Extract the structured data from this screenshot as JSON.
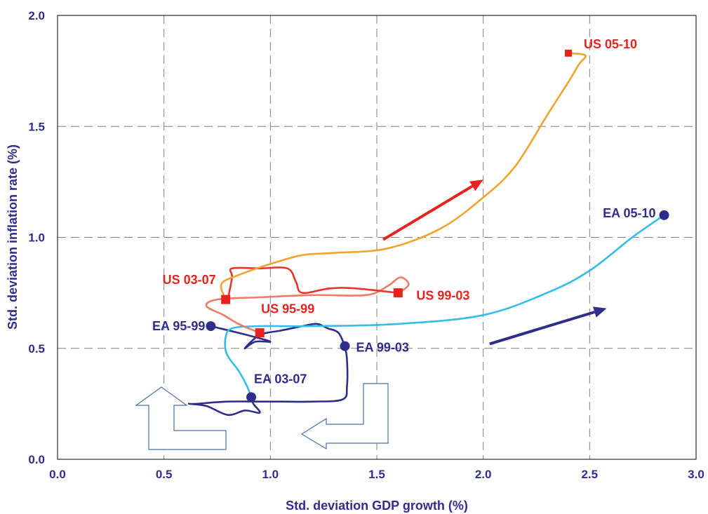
{
  "chart_data": {
    "type": "line",
    "xlabel": "Std. deviation GDP growth (%)",
    "ylabel": "Std. deviation inflation rate (%)",
    "xlim": [
      0.0,
      3.0
    ],
    "ylim": [
      0.0,
      2.0
    ],
    "x_ticks": [
      "0.0",
      "0.5",
      "1.0",
      "1.5",
      "2.0",
      "2.5",
      "3.0"
    ],
    "y_ticks": [
      "0.0",
      "0.5",
      "1.0",
      "1.5",
      "2.0"
    ],
    "grid": true,
    "colors": {
      "ea_path": "#2e2d8c",
      "ea_05_10_path": "#33bde8",
      "us_path": "#e8342a",
      "us_95_99_path": "#f07a6a",
      "us_05_10_path": "#f2a22f",
      "ea_marker": "#2e2d8c",
      "us_marker": "#e8231e",
      "ea_text": "#2e2d8c",
      "us_text": "#e8231e",
      "axis_text": "#2e2d8c"
    },
    "series": [
      {
        "name": "EA",
        "marker": "circle",
        "points": [
          {
            "label": "EA 95-99",
            "x": 0.72,
            "y": 0.6
          },
          {
            "label": "EA 99-03",
            "x": 1.35,
            "y": 0.51
          },
          {
            "label": "EA 03-07",
            "x": 0.91,
            "y": 0.28
          },
          {
            "label": "EA 05-10",
            "x": 2.85,
            "y": 1.1
          }
        ]
      },
      {
        "name": "US",
        "marker": "square",
        "points": [
          {
            "label": "US 95-99",
            "x": 0.95,
            "y": 0.57
          },
          {
            "label": "US 99-03",
            "x": 1.6,
            "y": 0.75
          },
          {
            "label": "US 03-07",
            "x": 0.79,
            "y": 0.72
          },
          {
            "label": "US 05-10",
            "x": 2.4,
            "y": 1.83
          }
        ]
      }
    ],
    "paths": [
      {
        "from": "EA 95-99",
        "to": "EA 99-03",
        "color": "ea_path",
        "xy": [
          [
            0.72,
            0.6
          ],
          [
            0.85,
            0.57
          ],
          [
            0.93,
            0.55
          ],
          [
            1.0,
            0.53
          ],
          [
            0.93,
            0.53
          ],
          [
            0.88,
            0.5
          ],
          [
            0.95,
            0.56
          ],
          [
            1.05,
            0.58
          ],
          [
            1.15,
            0.6
          ],
          [
            1.22,
            0.61
          ],
          [
            1.27,
            0.59
          ],
          [
            1.32,
            0.57
          ],
          [
            1.35,
            0.51
          ]
        ]
      },
      {
        "from": "EA 99-03",
        "to": "EA 03-07",
        "color": "ea_path",
        "xy": [
          [
            1.35,
            0.51
          ],
          [
            1.36,
            0.45
          ],
          [
            1.36,
            0.33
          ],
          [
            1.34,
            0.27
          ],
          [
            1.2,
            0.26
          ],
          [
            1.05,
            0.26
          ],
          [
            0.95,
            0.26
          ],
          [
            0.8,
            0.26
          ],
          [
            0.65,
            0.25
          ],
          [
            0.62,
            0.25
          ],
          [
            0.7,
            0.24
          ],
          [
            0.8,
            0.2
          ],
          [
            0.88,
            0.22
          ],
          [
            0.95,
            0.21
          ],
          [
            0.92,
            0.25
          ],
          [
            0.91,
            0.28
          ]
        ]
      },
      {
        "from": "EA 03-07",
        "to": "EA 05-10",
        "color": "ea_05_10_path",
        "xy": [
          [
            0.91,
            0.28
          ],
          [
            0.89,
            0.33
          ],
          [
            0.85,
            0.4
          ],
          [
            0.81,
            0.45
          ],
          [
            0.79,
            0.49
          ],
          [
            0.79,
            0.55
          ],
          [
            0.82,
            0.59
          ],
          [
            0.95,
            0.6
          ],
          [
            1.2,
            0.6
          ],
          [
            1.6,
            0.61
          ],
          [
            2.0,
            0.65
          ],
          [
            2.3,
            0.75
          ],
          [
            2.5,
            0.85
          ],
          [
            2.7,
            1.0
          ],
          [
            2.85,
            1.1
          ]
        ]
      },
      {
        "from": "US 95-99",
        "to": "US 99-03",
        "color": "us_95_99_path",
        "xy": [
          [
            0.95,
            0.57
          ],
          [
            0.85,
            0.61
          ],
          [
            0.78,
            0.65
          ],
          [
            0.7,
            0.69
          ],
          [
            0.75,
            0.72
          ],
          [
            0.95,
            0.73
          ],
          [
            1.2,
            0.74
          ],
          [
            1.45,
            0.74
          ],
          [
            1.55,
            0.78
          ],
          [
            1.61,
            0.82
          ],
          [
            1.65,
            0.79
          ],
          [
            1.62,
            0.76
          ],
          [
            1.6,
            0.75
          ]
        ]
      },
      {
        "from": "US 99-03",
        "to": "US 03-07",
        "color": "us_path",
        "xy": [
          [
            1.6,
            0.75
          ],
          [
            1.4,
            0.77
          ],
          [
            1.28,
            0.77
          ],
          [
            1.15,
            0.75
          ],
          [
            1.12,
            0.8
          ],
          [
            1.08,
            0.86
          ],
          [
            0.95,
            0.86
          ],
          [
            0.82,
            0.86
          ],
          [
            0.82,
            0.82
          ],
          [
            0.8,
            0.72
          ]
        ]
      },
      {
        "from": "US 03-07",
        "to": "US 05-10",
        "color": "us_05_10_path",
        "xy": [
          [
            0.79,
            0.72
          ],
          [
            0.77,
            0.79
          ],
          [
            0.85,
            0.83
          ],
          [
            1.0,
            0.88
          ],
          [
            1.15,
            0.92
          ],
          [
            1.3,
            0.93
          ],
          [
            1.55,
            0.95
          ],
          [
            1.8,
            1.04
          ],
          [
            2.0,
            1.18
          ],
          [
            2.15,
            1.32
          ],
          [
            2.3,
            1.55
          ],
          [
            2.4,
            1.7
          ],
          [
            2.45,
            1.78
          ],
          [
            2.48,
            1.82
          ],
          [
            2.4,
            1.83
          ]
        ]
      }
    ],
    "trend_arrows": [
      {
        "color": "us_text",
        "from": [
          1.53,
          0.99
        ],
        "to": [
          2.0,
          1.26
        ]
      },
      {
        "color": "ea_marker",
        "from": [
          2.03,
          0.52
        ],
        "to": [
          2.58,
          0.68
        ]
      }
    ]
  }
}
